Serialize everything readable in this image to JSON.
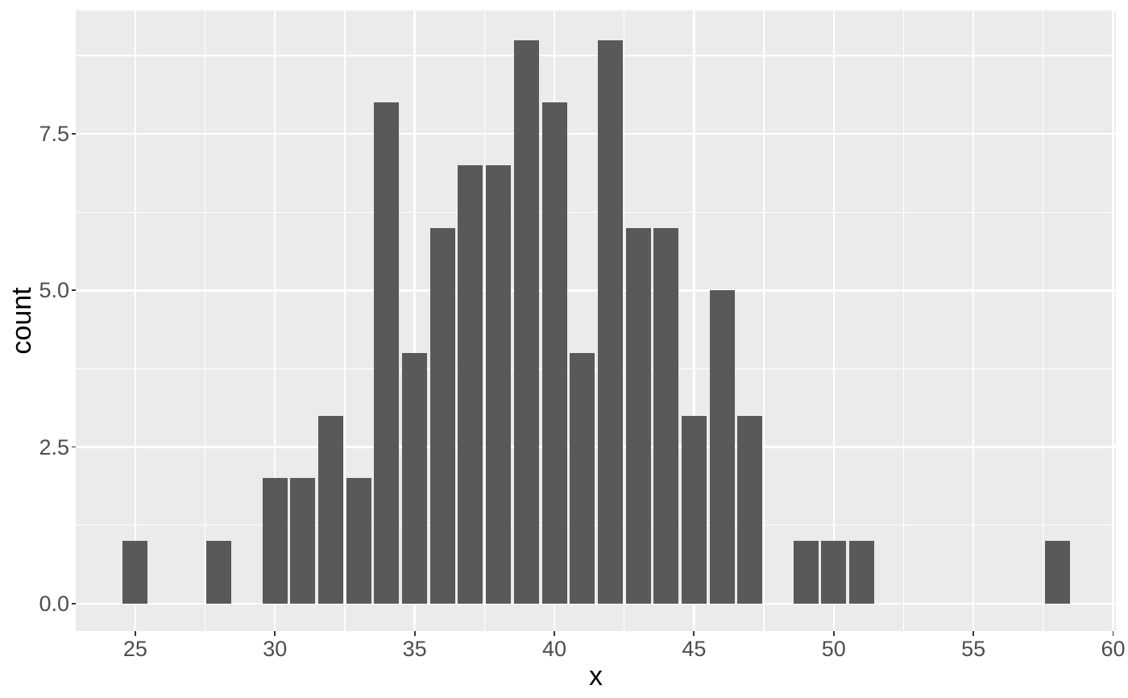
{
  "chart_data": {
    "type": "bar",
    "subtype": "histogram",
    "title": "",
    "xlabel": "x",
    "ylabel": "count",
    "bin_width": 1,
    "bin_centers": [
      25,
      26,
      27,
      28,
      29,
      30,
      31,
      32,
      33,
      34,
      35,
      36,
      37,
      38,
      39,
      40,
      41,
      42,
      43,
      44,
      45,
      46,
      47,
      48,
      49,
      50,
      51,
      52,
      53,
      54,
      55,
      56,
      57,
      58
    ],
    "counts": [
      1,
      0,
      0,
      1,
      0,
      2,
      2,
      3,
      2,
      8,
      4,
      6,
      7,
      7,
      9,
      8,
      4,
      9,
      6,
      6,
      3,
      5,
      3,
      0,
      1,
      1,
      1,
      0,
      0,
      0,
      0,
      0,
      0,
      1
    ],
    "total_observations": 100,
    "x_ticks": {
      "values": [
        25,
        30,
        35,
        40,
        45,
        50,
        55,
        60
      ],
      "labels": [
        "25",
        "30",
        "35",
        "40",
        "45",
        "50",
        "55",
        "60"
      ]
    },
    "y_ticks": {
      "values": [
        0,
        2.5,
        5,
        7.5
      ],
      "labels": [
        "0.0",
        "2.5",
        "5.0",
        "7.5"
      ]
    },
    "x_minor_ticks": [
      27.5,
      32.5,
      37.5,
      42.5,
      47.5,
      52.5,
      57.5
    ],
    "y_minor_ticks": [
      1.25,
      3.75,
      6.25,
      8.75
    ],
    "xlim": [
      22.87,
      60.1
    ],
    "ylim": [
      -0.44,
      9.47
    ],
    "grid": {
      "show_major": true,
      "show_minor": true,
      "major_color": "#FFFFFF",
      "minor_color": "#FFFFFF"
    },
    "legend": "none",
    "style": {
      "bar_color": "#595959",
      "panel_bg": "#EBEBEB",
      "figure_bg": "#FFFFFF",
      "axis_text_color": "#4D4D4D",
      "axis_title_color": "#000000",
      "tick_mark_color": "#333333"
    }
  }
}
